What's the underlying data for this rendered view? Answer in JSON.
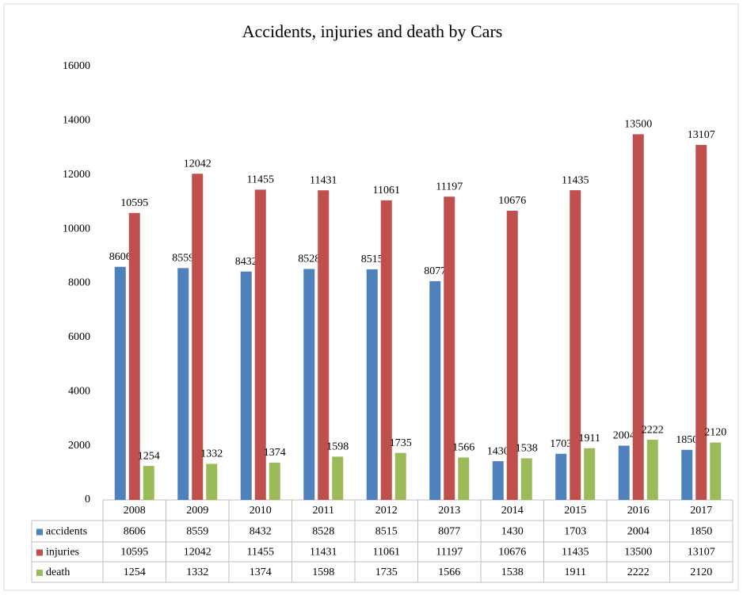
{
  "chart_data": {
    "type": "bar",
    "title": "Accidents, injuries and death by Cars",
    "categories": [
      "2008",
      "2009",
      "2010",
      "2011",
      "2012",
      "2013",
      "2014",
      "2015",
      "2016",
      "2017"
    ],
    "series": [
      {
        "name": "accidents",
        "color": "#4f81bd",
        "values": [
          8606,
          8559,
          8432,
          8528,
          8515,
          8077,
          1430,
          1703,
          2004,
          1850
        ]
      },
      {
        "name": "injuries",
        "color": "#c0504d",
        "values": [
          10595,
          12042,
          11455,
          11431,
          11061,
          11197,
          10676,
          11435,
          13500,
          13107
        ]
      },
      {
        "name": "death",
        "color": "#9bbb59",
        "values": [
          1254,
          1332,
          1374,
          1598,
          1735,
          1566,
          1538,
          1911,
          2222,
          2120
        ]
      }
    ],
    "ylim": [
      0,
      16000
    ],
    "yticks": [
      0,
      2000,
      4000,
      6000,
      8000,
      10000,
      12000,
      14000,
      16000
    ],
    "grid": false
  }
}
